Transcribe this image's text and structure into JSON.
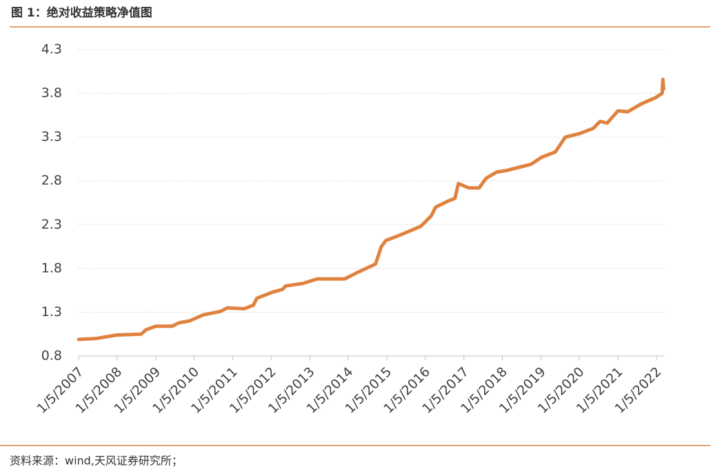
{
  "chart_data": {
    "type": "line",
    "title": "图 1：绝对收益策略净值图",
    "source": "资料来源：wind,天风证券研究所；",
    "x": [
      "2007-01-05",
      "2007-06-20",
      "2008-01-05",
      "2008-08-20",
      "2008-10-05",
      "2009-01-05",
      "2009-06-10",
      "2009-08-15",
      "2009-11-20",
      "2010-04-01",
      "2010-09-12",
      "2010-11-15",
      "2011-04-25",
      "2011-07-20",
      "2011-08-22",
      "2012-01-20",
      "2012-04-20",
      "2012-05-22",
      "2012-11-03",
      "2013-03-15",
      "2013-12-01",
      "2014-04-12",
      "2014-09-20",
      "2014-11-14",
      "2014-12-28",
      "2015-05-08",
      "2015-11-22",
      "2016-03-01",
      "2016-04-12",
      "2016-08-08",
      "2016-10-12",
      "2016-11-14",
      "2017-02-20",
      "2017-05-30",
      "2017-08-04",
      "2017-11-10",
      "2018-02-17",
      "2018-10-04",
      "2019-01-12",
      "2019-05-22",
      "2019-08-25",
      "2020-01-05",
      "2020-05-15",
      "2020-07-20",
      "2020-09-24",
      "2021-01-05",
      "2021-04-07",
      "2021-08-15",
      "2021-12-26",
      "2022-02-28",
      "2022-03-07",
      "2022-03-14"
    ],
    "series": [
      {
        "name": "绝对收益策略净值",
        "color": "#e0823f",
        "values": [
          0.99,
          1.0,
          1.04,
          1.05,
          1.1,
          1.14,
          1.14,
          1.18,
          1.2,
          1.27,
          1.31,
          1.35,
          1.34,
          1.38,
          1.46,
          1.53,
          1.56,
          1.6,
          1.63,
          1.68,
          1.68,
          1.76,
          1.85,
          2.05,
          2.12,
          2.18,
          2.28,
          2.4,
          2.5,
          2.57,
          2.6,
          2.77,
          2.72,
          2.72,
          2.83,
          2.9,
          2.92,
          2.99,
          3.07,
          3.13,
          3.3,
          3.34,
          3.4,
          3.48,
          3.46,
          3.6,
          3.59,
          3.68,
          3.75,
          3.8,
          3.96,
          3.85
        ]
      }
    ],
    "xlim": [
      "2007-01-05",
      "2022-03-18"
    ],
    "xticks": [
      {
        "value": "2007-01-05",
        "label": "1/5/2007"
      },
      {
        "value": "2008-01-05",
        "label": "1/5/2008"
      },
      {
        "value": "2009-01-05",
        "label": "1/5/2009"
      },
      {
        "value": "2010-01-05",
        "label": "1/5/2010"
      },
      {
        "value": "2011-01-05",
        "label": "1/5/2011"
      },
      {
        "value": "2012-01-05",
        "label": "1/5/2012"
      },
      {
        "value": "2013-01-05",
        "label": "1/5/2013"
      },
      {
        "value": "2014-01-05",
        "label": "1/5/2014"
      },
      {
        "value": "2015-01-05",
        "label": "1/5/2015"
      },
      {
        "value": "2016-01-05",
        "label": "1/5/2016"
      },
      {
        "value": "2017-01-05",
        "label": "1/5/2017"
      },
      {
        "value": "2018-01-05",
        "label": "1/5/2018"
      },
      {
        "value": "2019-01-05",
        "label": "1/5/2019"
      },
      {
        "value": "2020-01-05",
        "label": "1/5/2020"
      },
      {
        "value": "2021-01-05",
        "label": "1/5/2021"
      },
      {
        "value": "2022-01-05",
        "label": "1/5/2022"
      }
    ],
    "ylim": [
      0.8,
      4.3
    ],
    "yticks": [
      0.8,
      1.3,
      1.8,
      2.3,
      2.8,
      3.3,
      3.8,
      4.3
    ],
    "grid": true
  }
}
